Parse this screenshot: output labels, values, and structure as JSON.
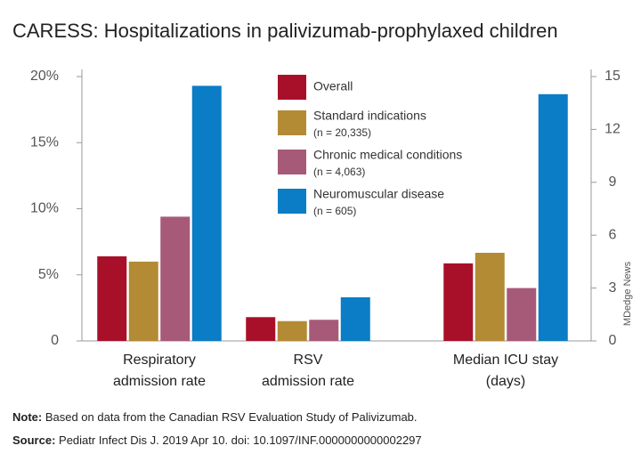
{
  "chart_data": {
    "type": "bar",
    "title": "CARESS: Hospitalizations in palivizumab-prophylaxed children",
    "categories": [
      [
        "Respiratory",
        "admission rate"
      ],
      [
        "RSV",
        "admission rate"
      ],
      [
        "Median ICU stay",
        "(days)"
      ]
    ],
    "category_axis": [
      "y",
      "y",
      "y2"
    ],
    "series": [
      {
        "name": "Overall",
        "color": "#a8102a",
        "values": [
          6.4,
          1.8,
          4.4
        ]
      },
      {
        "name": "Standard indications",
        "n": "(n = 20,335)",
        "color": "#b38b35",
        "values": [
          6.0,
          1.5,
          5.0
        ]
      },
      {
        "name": "Chronic medical conditions",
        "n": "(n = 4,063)",
        "color": "#a65a78",
        "values": [
          9.4,
          1.6,
          3.0
        ]
      },
      {
        "name": "Neuromuscular disease",
        "n": "(n = 605)",
        "color": "#0a7dc6",
        "values": [
          19.3,
          3.3,
          14.0
        ]
      }
    ],
    "ylim": [
      0,
      20
    ],
    "yticks": [
      0,
      {
        "value": 5,
        "label": "5%"
      },
      {
        "value": 10,
        "label": "10%"
      },
      {
        "value": 15,
        "label": "15%"
      },
      {
        "value": 20,
        "label": "20%"
      }
    ],
    "y2lim": [
      0,
      15
    ],
    "y2ticks": [
      0,
      3,
      6,
      9,
      12,
      15
    ],
    "grid": false,
    "note_label": "Note:",
    "note": " Based on data from the Canadian RSV Evaluation Study of Palivizumab.",
    "source_label": "Source:",
    "source": " Pediatr Infect Dis J. 2019 Apr 10. doi: 10.1097/INF.0000000000002297",
    "credit": "MDedge News"
  }
}
